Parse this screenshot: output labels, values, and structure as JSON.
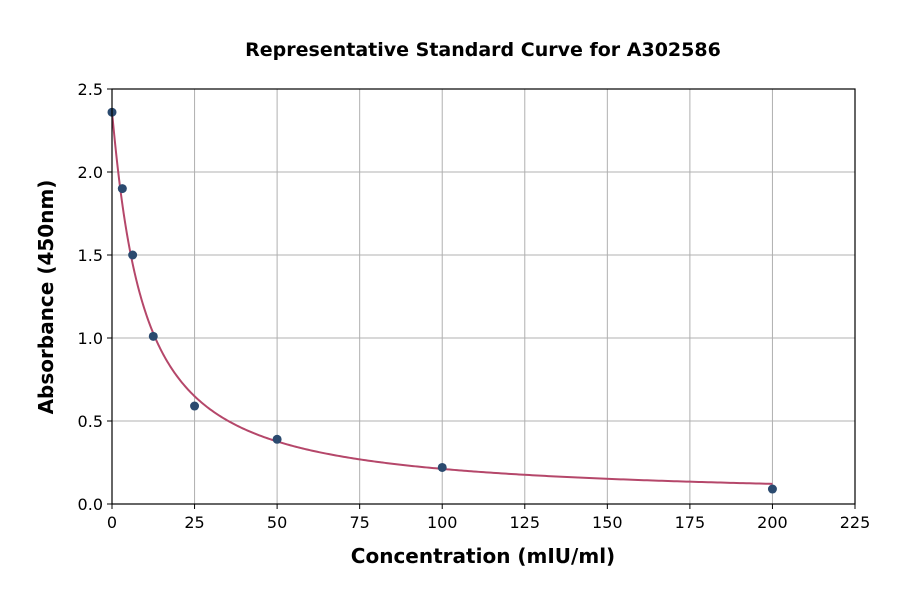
{
  "chart_data": {
    "type": "scatter",
    "title": "Representative Standard Curve for A302586",
    "xlabel": "Concentration (mIU/ml)",
    "ylabel": "Absorbance (450nm)",
    "xlim": [
      0,
      225
    ],
    "ylim": [
      0,
      2.5
    ],
    "xticks": [
      "0",
      "25",
      "50",
      "75",
      "100",
      "125",
      "150",
      "175",
      "200",
      "225"
    ],
    "yticks": [
      "0.0",
      "0.5",
      "1.0",
      "1.5",
      "2.0",
      "2.5"
    ],
    "grid": true,
    "series": [
      {
        "x": [
          0,
          3.125,
          6.25,
          12.5,
          25,
          50,
          100,
          200
        ],
        "y": [
          2.36,
          1.9,
          1.5,
          1.01,
          0.59,
          0.39,
          0.22,
          0.09
        ]
      }
    ],
    "fit_curve": true,
    "colors": {
      "points": "#2b4a6f",
      "curve": "#b5476a"
    }
  }
}
